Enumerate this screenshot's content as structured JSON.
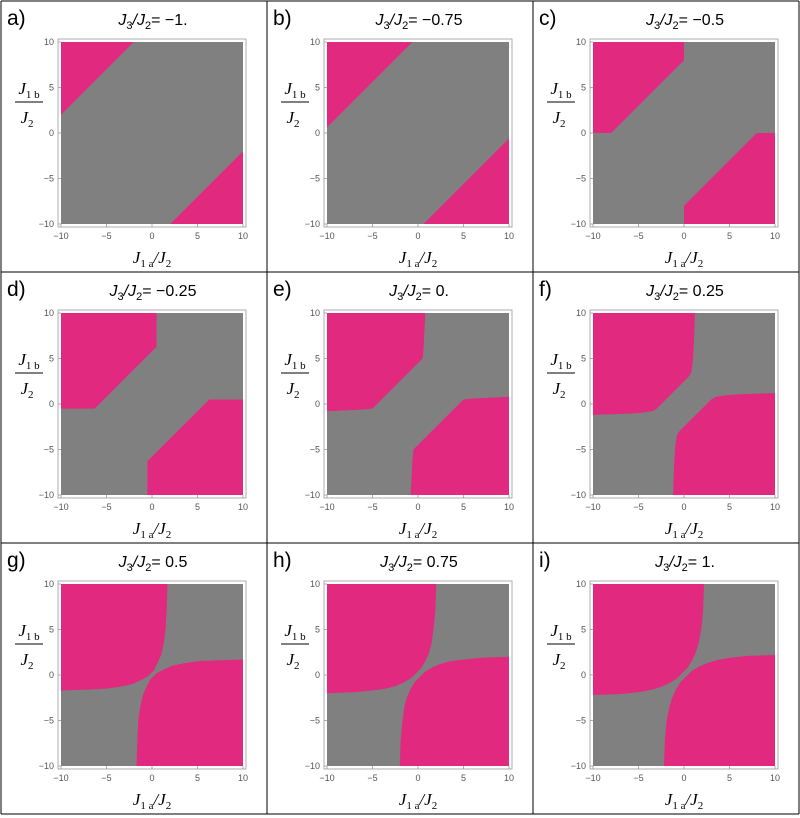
{
  "figure": {
    "background": "#ffffff",
    "grid_color": "#000000",
    "region_colors": {
      "primary": "#e0297f",
      "secondary": "#808080"
    }
  },
  "chart_data": [
    {
      "panel": "a)",
      "title_prefix": "J",
      "title_sub1": "3",
      "title_sep": "/J",
      "title_sub2": "2",
      "title_value": "= −1.",
      "type": "heatmap",
      "xlabel": "J1a/J2",
      "ylabel": "J1b/J2",
      "xlim": [
        -10,
        10
      ],
      "ylim": [
        -10,
        10
      ],
      "xticks": [
        "−10",
        "−5",
        "0",
        "5",
        "10"
      ],
      "yticks": [
        "10",
        "5",
        "0",
        "−5",
        "−10"
      ],
      "regions": [
        {
          "color": "primary",
          "polygon": [
            [
              -10,
              2
            ],
            [
              -10,
              10
            ],
            [
              -2,
              10
            ]
          ]
        },
        {
          "color": "primary",
          "polygon": [
            [
              2,
              -10
            ],
            [
              10,
              -10
            ],
            [
              10,
              -2
            ]
          ]
        }
      ]
    },
    {
      "panel": "b)",
      "title_prefix": "J",
      "title_sub1": "3",
      "title_sep": "/J",
      "title_sub2": "2",
      "title_value": "= −0.75",
      "type": "heatmap",
      "xlabel": "J1a/J2",
      "ylabel": "J1b/J2",
      "xlim": [
        -10,
        10
      ],
      "ylim": [
        -10,
        10
      ],
      "xticks": [
        "−10",
        "−5",
        "0",
        "5",
        "10"
      ],
      "yticks": [
        "10",
        "5",
        "0",
        "−5",
        "−10"
      ],
      "regions": [
        {
          "color": "primary",
          "polygon": [
            [
              -10,
              0.6
            ],
            [
              -10,
              10
            ],
            [
              -0.6,
              10
            ]
          ]
        },
        {
          "color": "primary",
          "polygon": [
            [
              0.6,
              -10
            ],
            [
              10,
              -10
            ],
            [
              10,
              -0.6
            ]
          ]
        }
      ]
    },
    {
      "panel": "c)",
      "title_prefix": "J",
      "title_sub1": "3",
      "title_sep": "/J",
      "title_sub2": "2",
      "title_value": "= −0.5",
      "type": "heatmap",
      "xlabel": "J1a/J2",
      "ylabel": "J1b/J2",
      "xlim": [
        -10,
        10
      ],
      "ylim": [
        -10,
        10
      ],
      "xticks": [
        "−10",
        "−5",
        "0",
        "5",
        "10"
      ],
      "yticks": [
        "10",
        "5",
        "0",
        "−5",
        "−10"
      ],
      "regions": [
        {
          "color": "primary",
          "polygon": [
            [
              -10,
              0
            ],
            [
              -10,
              10
            ],
            [
              0,
              10
            ],
            [
              0,
              8
            ],
            [
              -8,
              0
            ]
          ]
        },
        {
          "color": "primary",
          "polygon": [
            [
              0,
              -10
            ],
            [
              10,
              -10
            ],
            [
              10,
              0
            ],
            [
              8,
              0
            ],
            [
              0,
              -8
            ]
          ]
        }
      ]
    },
    {
      "panel": "d)",
      "title_prefix": "J",
      "title_sub1": "3",
      "title_sep": "/J",
      "title_sub2": "2",
      "title_value": "= −0.25",
      "type": "heatmap",
      "xlabel": "J1a/J2",
      "ylabel": "J1b/J2",
      "xlim": [
        -10,
        10
      ],
      "ylim": [
        -10,
        10
      ],
      "xticks": [
        "−10",
        "−5",
        "0",
        "5",
        "10"
      ],
      "yticks": [
        "10",
        "5",
        "0",
        "−5",
        "−10"
      ],
      "regions": [
        {
          "color": "primary",
          "polygon": [
            [
              -10,
              -0.5
            ],
            [
              -10,
              10
            ],
            [
              0.5,
              10
            ],
            [
              0.5,
              6.3
            ],
            [
              -6.3,
              -0.5
            ]
          ]
        },
        {
          "color": "primary",
          "polygon": [
            [
              -0.5,
              -10
            ],
            [
              10,
              -10
            ],
            [
              10,
              0.5
            ],
            [
              6.3,
              0.5
            ],
            [
              -0.5,
              -6.3
            ]
          ]
        }
      ]
    },
    {
      "panel": "e)",
      "title_prefix": "J",
      "title_sub1": "3",
      "title_sep": "/J",
      "title_sub2": "2",
      "title_value": "= 0.",
      "type": "heatmap",
      "xlabel": "J1a/J2",
      "ylabel": "J1b/J2",
      "xlim": [
        -10,
        10
      ],
      "ylim": [
        -10,
        10
      ],
      "xticks": [
        "−10",
        "−5",
        "0",
        "5",
        "10"
      ],
      "yticks": [
        "10",
        "5",
        "0",
        "−5",
        "−10"
      ],
      "regions": [
        {
          "color": "primary",
          "polygon": [
            [
              -10,
              -0.8
            ],
            [
              -10,
              10
            ],
            [
              0.8,
              10
            ],
            [
              0.6,
              6
            ],
            [
              0.5,
              5
            ],
            [
              -5,
              -0.5
            ],
            [
              -6,
              -0.6
            ]
          ]
        },
        {
          "color": "primary",
          "polygon": [
            [
              -0.8,
              -10
            ],
            [
              10,
              -10
            ],
            [
              10,
              0.8
            ],
            [
              6,
              0.6
            ],
            [
              5,
              0.5
            ],
            [
              -0.5,
              -5
            ],
            [
              -0.6,
              -6
            ]
          ]
        }
      ]
    },
    {
      "panel": "f)",
      "title_prefix": "J",
      "title_sub1": "3",
      "title_sep": "/J",
      "title_sub2": "2",
      "title_value": "= 0.25",
      "type": "heatmap",
      "xlabel": "J1a/J2",
      "ylabel": "J1b/J2",
      "xlim": [
        -10,
        10
      ],
      "ylim": [
        -10,
        10
      ],
      "xticks": [
        "−10",
        "−5",
        "0",
        "5",
        "10"
      ],
      "yticks": [
        "10",
        "5",
        "0",
        "−5",
        "−10"
      ],
      "regions": [
        {
          "color": "primary",
          "polygon": [
            [
              -10,
              -1.2
            ],
            [
              -10,
              10
            ],
            [
              1.2,
              10
            ],
            [
              1.1,
              7
            ],
            [
              1,
              5
            ],
            [
              0.8,
              3.5
            ],
            [
              0.5,
              3
            ],
            [
              -3,
              -0.5
            ],
            [
              -3.5,
              -0.8
            ],
            [
              -5,
              -1
            ],
            [
              -7,
              -1.1
            ]
          ]
        },
        {
          "color": "primary",
          "polygon": [
            [
              -1.2,
              -10
            ],
            [
              10,
              -10
            ],
            [
              10,
              1.2
            ],
            [
              7,
              1.1
            ],
            [
              5,
              1
            ],
            [
              3.5,
              0.8
            ],
            [
              3,
              0.5
            ],
            [
              -0.5,
              -3
            ],
            [
              -0.8,
              -3.5
            ],
            [
              -1,
              -5
            ],
            [
              -1.1,
              -7
            ]
          ]
        }
      ]
    },
    {
      "panel": "g)",
      "title_prefix": "J",
      "title_sub1": "3",
      "title_sep": "/J",
      "title_sub2": "2",
      "title_value": "= 0.5",
      "type": "heatmap",
      "xlabel": "J1a/J2",
      "ylabel": "J1b/J2",
      "xlim": [
        -10,
        10
      ],
      "ylim": [
        -10,
        10
      ],
      "xticks": [
        "−10",
        "−5",
        "0",
        "5",
        "10"
      ],
      "yticks": [
        "10",
        "5",
        "0",
        "−5",
        "−10"
      ],
      "regions": [
        {
          "color": "primary",
          "polygon": [
            [
              -10,
              -1.7
            ],
            [
              -10,
              10
            ],
            [
              1.7,
              10
            ],
            [
              1.6,
              7
            ],
            [
              1.5,
              5
            ],
            [
              1.3,
              3.5
            ],
            [
              1,
              2.2
            ],
            [
              0.6,
              1.3
            ],
            [
              0.2,
              0.5
            ],
            [
              -0.5,
              -0.2
            ],
            [
              -1.3,
              -0.6
            ],
            [
              -2.2,
              -1
            ],
            [
              -3.5,
              -1.3
            ],
            [
              -5,
              -1.5
            ],
            [
              -7,
              -1.6
            ]
          ]
        },
        {
          "color": "primary",
          "polygon": [
            [
              -1.7,
              -10
            ],
            [
              10,
              -10
            ],
            [
              10,
              1.7
            ],
            [
              7,
              1.6
            ],
            [
              5,
              1.5
            ],
            [
              3.5,
              1.3
            ],
            [
              2.2,
              1
            ],
            [
              1.3,
              0.6
            ],
            [
              0.5,
              0.2
            ],
            [
              -0.2,
              -0.5
            ],
            [
              -0.6,
              -1.3
            ],
            [
              -1,
              -2.2
            ],
            [
              -1.3,
              -3.5
            ],
            [
              -1.5,
              -5
            ],
            [
              -1.6,
              -7
            ]
          ]
        }
      ]
    },
    {
      "panel": "h)",
      "title_prefix": "J",
      "title_sub1": "3",
      "title_sep": "/J",
      "title_sub2": "2",
      "title_value": "= 0.75",
      "type": "heatmap",
      "xlabel": "J1a/J2",
      "ylabel": "J1b/J2",
      "xlim": [
        -10,
        10
      ],
      "ylim": [
        -10,
        10
      ],
      "xticks": [
        "−10",
        "−5",
        "0",
        "5",
        "10"
      ],
      "yticks": [
        "10",
        "5",
        "0",
        "−5",
        "−10"
      ],
      "regions": [
        {
          "color": "primary",
          "polygon": [
            [
              -10,
              -2
            ],
            [
              -10,
              10
            ],
            [
              2,
              10
            ],
            [
              1.9,
              7
            ],
            [
              1.7,
              5
            ],
            [
              1.5,
              3.5
            ],
            [
              1.2,
              2.4
            ],
            [
              0.8,
              1.5
            ],
            [
              0.3,
              0.7
            ],
            [
              -0.7,
              -0.3
            ],
            [
              -1.5,
              -0.8
            ],
            [
              -2.4,
              -1.2
            ],
            [
              -3.5,
              -1.5
            ],
            [
              -5,
              -1.7
            ],
            [
              -7,
              -1.9
            ]
          ]
        },
        {
          "color": "primary",
          "polygon": [
            [
              -2,
              -10
            ],
            [
              10,
              -10
            ],
            [
              10,
              2
            ],
            [
              7,
              1.9
            ],
            [
              5,
              1.7
            ],
            [
              3.5,
              1.5
            ],
            [
              2.4,
              1.2
            ],
            [
              1.5,
              0.8
            ],
            [
              0.7,
              0.3
            ],
            [
              -0.3,
              -0.7
            ],
            [
              -0.8,
              -1.5
            ],
            [
              -1.2,
              -2.4
            ],
            [
              -1.5,
              -3.5
            ],
            [
              -1.7,
              -5
            ],
            [
              -1.9,
              -7
            ]
          ]
        }
      ]
    },
    {
      "panel": "i)",
      "title_prefix": "J",
      "title_sub1": "3",
      "title_sep": "/J",
      "title_sub2": "2",
      "title_value": "= 1.",
      "type": "heatmap",
      "xlabel": "J1a/J2",
      "ylabel": "J1b/J2",
      "xlim": [
        -10,
        10
      ],
      "ylim": [
        -10,
        10
      ],
      "xticks": [
        "−10",
        "−5",
        "0",
        "5",
        "10"
      ],
      "yticks": [
        "10",
        "5",
        "0",
        "−5",
        "−10"
      ],
      "regions": [
        {
          "color": "primary",
          "polygon": [
            [
              -10,
              -2.2
            ],
            [
              -10,
              10
            ],
            [
              2.2,
              10
            ],
            [
              2.1,
              7
            ],
            [
              1.9,
              5
            ],
            [
              1.6,
              3.5
            ],
            [
              1.3,
              2.5
            ],
            [
              0.9,
              1.6
            ],
            [
              0.4,
              0.8
            ],
            [
              -0.8,
              -0.4
            ],
            [
              -1.6,
              -0.9
            ],
            [
              -2.5,
              -1.3
            ],
            [
              -3.5,
              -1.6
            ],
            [
              -5,
              -1.9
            ],
            [
              -7,
              -2.1
            ]
          ]
        },
        {
          "color": "primary",
          "polygon": [
            [
              -2.2,
              -10
            ],
            [
              10,
              -10
            ],
            [
              10,
              2.2
            ],
            [
              7,
              2.1
            ],
            [
              5,
              1.9
            ],
            [
              3.5,
              1.6
            ],
            [
              2.5,
              1.3
            ],
            [
              1.6,
              0.9
            ],
            [
              0.8,
              0.4
            ],
            [
              -0.4,
              -0.8
            ],
            [
              -0.9,
              -1.6
            ],
            [
              -1.3,
              -2.5
            ],
            [
              -1.6,
              -3.5
            ],
            [
              -1.9,
              -5
            ],
            [
              -2.1,
              -7
            ]
          ]
        }
      ]
    }
  ]
}
